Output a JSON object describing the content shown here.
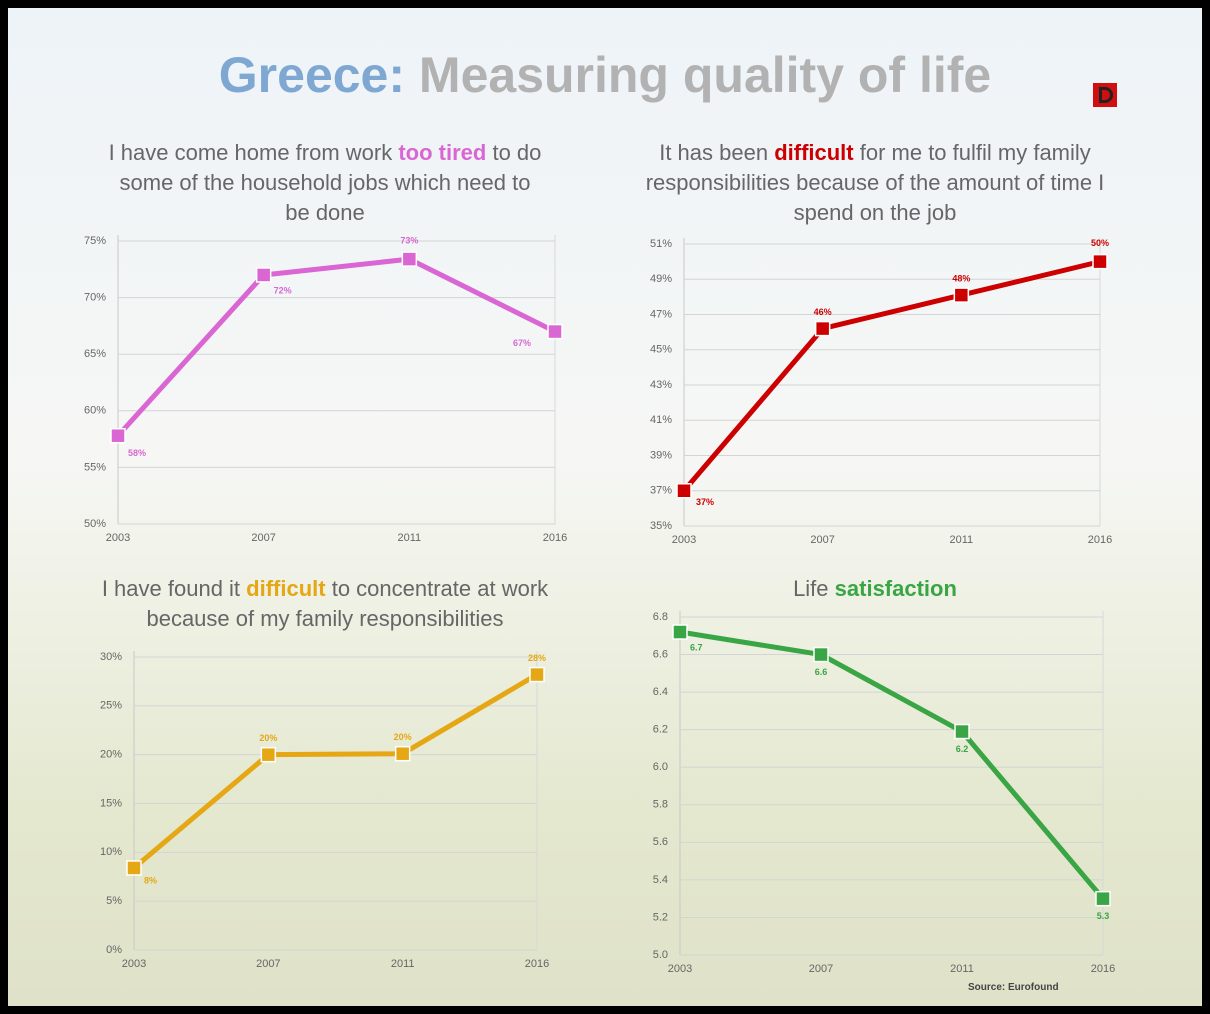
{
  "header": {
    "country": "Greece:",
    "text": "Measuring quality of life"
  },
  "source": "Source: Eurofound",
  "chart_data": [
    {
      "type": "line",
      "title": {
        "before": "I have come home from work ",
        "highlight": "too tired",
        "after": " to do some of the household jobs which need to be done"
      },
      "categories": [
        "2003",
        "2007",
        "2011",
        "2016"
      ],
      "values": [
        57.8,
        72,
        73.4,
        67
      ],
      "value_labels": [
        "58%",
        "72%",
        "73%",
        "67%"
      ],
      "color": "#d966d3",
      "ylim": [
        50,
        75
      ],
      "grid": true,
      "yticks": [
        {
          "value": 50,
          "label": "50%"
        },
        {
          "value": 55,
          "label": "55%"
        },
        {
          "value": 60,
          "label": "60%"
        },
        {
          "value": 65,
          "label": "65%"
        },
        {
          "value": 70,
          "label": "70%"
        },
        {
          "value": 75,
          "label": "75%"
        }
      ]
    },
    {
      "type": "line",
      "title": {
        "before": "It has been ",
        "highlight": "difficult",
        "after": " for me to fulfil my family responsibilities because of the amount of time I spend on the job"
      },
      "categories": [
        "2003",
        "2007",
        "2011",
        "2016"
      ],
      "values": [
        37,
        46.2,
        48.1,
        50
      ],
      "value_labels": [
        "37%",
        "46%",
        "48%",
        "50%"
      ],
      "color": "#cc0000",
      "ylim": [
        35,
        51
      ],
      "grid": true,
      "yticks": [
        {
          "value": 35,
          "label": "35%"
        },
        {
          "value": 37,
          "label": "37%"
        },
        {
          "value": 39,
          "label": "39%"
        },
        {
          "value": 41,
          "label": "41%"
        },
        {
          "value": 43,
          "label": "43%"
        },
        {
          "value": 45,
          "label": "45%"
        },
        {
          "value": 47,
          "label": "47%"
        },
        {
          "value": 49,
          "label": "49%"
        },
        {
          "value": 51,
          "label": "51%"
        }
      ]
    },
    {
      "type": "line",
      "title": {
        "before": "I have found it ",
        "highlight": "difficult",
        "after": " to concentrate at work because of my family responsibilities"
      },
      "categories": [
        "2003",
        "2007",
        "2011",
        "2016"
      ],
      "values": [
        8.4,
        20,
        20.1,
        28.2
      ],
      "value_labels": [
        "8%",
        "20%",
        "20%",
        "28%"
      ],
      "color": "#e5a714",
      "ylim": [
        0,
        30
      ],
      "grid": true,
      "yticks": [
        {
          "value": 0,
          "label": "0%"
        },
        {
          "value": 5,
          "label": "5%"
        },
        {
          "value": 10,
          "label": "10%"
        },
        {
          "value": 15,
          "label": "15%"
        },
        {
          "value": 20,
          "label": "20%"
        },
        {
          "value": 25,
          "label": "25%"
        },
        {
          "value": 30,
          "label": "30%"
        }
      ]
    },
    {
      "type": "line",
      "title": {
        "before": "Life ",
        "highlight": "satisfaction"
      },
      "categories": [
        "2003",
        "2007",
        "2011",
        "2016"
      ],
      "values": [
        6.72,
        6.6,
        6.19,
        5.3
      ],
      "value_labels": [
        "6.7",
        "6.6",
        "6.2",
        "5.3"
      ],
      "color": "#3aa544",
      "ylim": [
        5,
        6.8
      ],
      "grid": true,
      "yticks": [
        {
          "value": 5,
          "label": "5.0"
        },
        5.2,
        5.4,
        5.6,
        5.8,
        {
          "value": 6,
          "label": "6.0"
        },
        6.2,
        6.4,
        6.6,
        6.8
      ]
    }
  ]
}
